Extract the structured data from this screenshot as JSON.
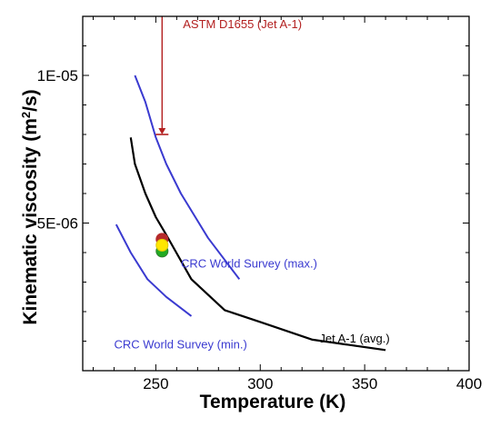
{
  "chart_data": {
    "type": "line",
    "title": "",
    "xlabel": "Temperature (K)",
    "ylabel_main": "Kinematic viscosity",
    "ylabel_unit_open": "(m",
    "ylabel_unit_exp": "2",
    "ylabel_unit_close": "/s)",
    "xlim": [
      215,
      400
    ],
    "ylim": [
      0,
      1.2e-05
    ],
    "x_ticks": [
      250,
      300,
      350,
      400
    ],
    "x_tick_labels": [
      "250",
      "300",
      "350",
      "400"
    ],
    "y_ticks": [
      5e-06,
      1e-05
    ],
    "y_tick_labels": [
      "5E-06",
      "1E-05"
    ],
    "grid": false,
    "series": [
      {
        "name": "CRC World Survey (max.)",
        "color": "#3a3ad0",
        "x": [
          240,
          245,
          250,
          255,
          262,
          275,
          290
        ],
        "y": [
          1e-05,
          9.1e-06,
          7.9e-06,
          7e-06,
          6e-06,
          4.5e-06,
          3.1e-06
        ]
      },
      {
        "name": "Jet A-1 (avg.)",
        "color": "#000000",
        "x": [
          238,
          240,
          245,
          250,
          255,
          267,
          283,
          300,
          325,
          360
        ],
        "y": [
          7.9e-06,
          7e-06,
          6e-06,
          5.2e-06,
          4.6e-06,
          3.1e-06,
          2.05e-06,
          1.65e-06,
          1.05e-06,
          7e-07
        ]
      },
      {
        "name": "CRC World Survey (min.)",
        "color": "#3a3ad0",
        "x": [
          231,
          238,
          246,
          255,
          267
        ],
        "y": [
          4.95e-06,
          4e-06,
          3.1e-06,
          2.5e-06,
          1.85e-06
        ]
      }
    ],
    "annotations": [
      {
        "text": "CRC World Survey (max.)",
        "x": 262,
        "y": 3.5e-06,
        "color": "#3a3ad0",
        "anchor": "start"
      },
      {
        "text": "CRC World Survey (min.)",
        "x": 230,
        "y": 7.5e-07,
        "color": "#3a3ad0",
        "anchor": "start"
      },
      {
        "text": "Jet A-1 (avg.)",
        "x": 362,
        "y": 9.5e-07,
        "color": "#000000",
        "anchor": "end"
      }
    ],
    "limit_marker": {
      "label": "ASTM D1655 (Jet A-1)",
      "color": "#b32020",
      "x": 253,
      "y_from": 1.2e-05,
      "y_to": 8e-06,
      "label_x": 263,
      "label_y": 1.16e-05
    },
    "points": [
      {
        "x": 253,
        "y": 4.45e-06,
        "color": "#b52a2a",
        "stroke": "#b52a2a"
      },
      {
        "x": 253,
        "y": 4.05e-06,
        "color": "#22aa22",
        "stroke": "#2f7f2f"
      },
      {
        "x": 253,
        "y": 4.25e-06,
        "color": "#ffe600",
        "stroke": "#e0c800"
      }
    ]
  }
}
